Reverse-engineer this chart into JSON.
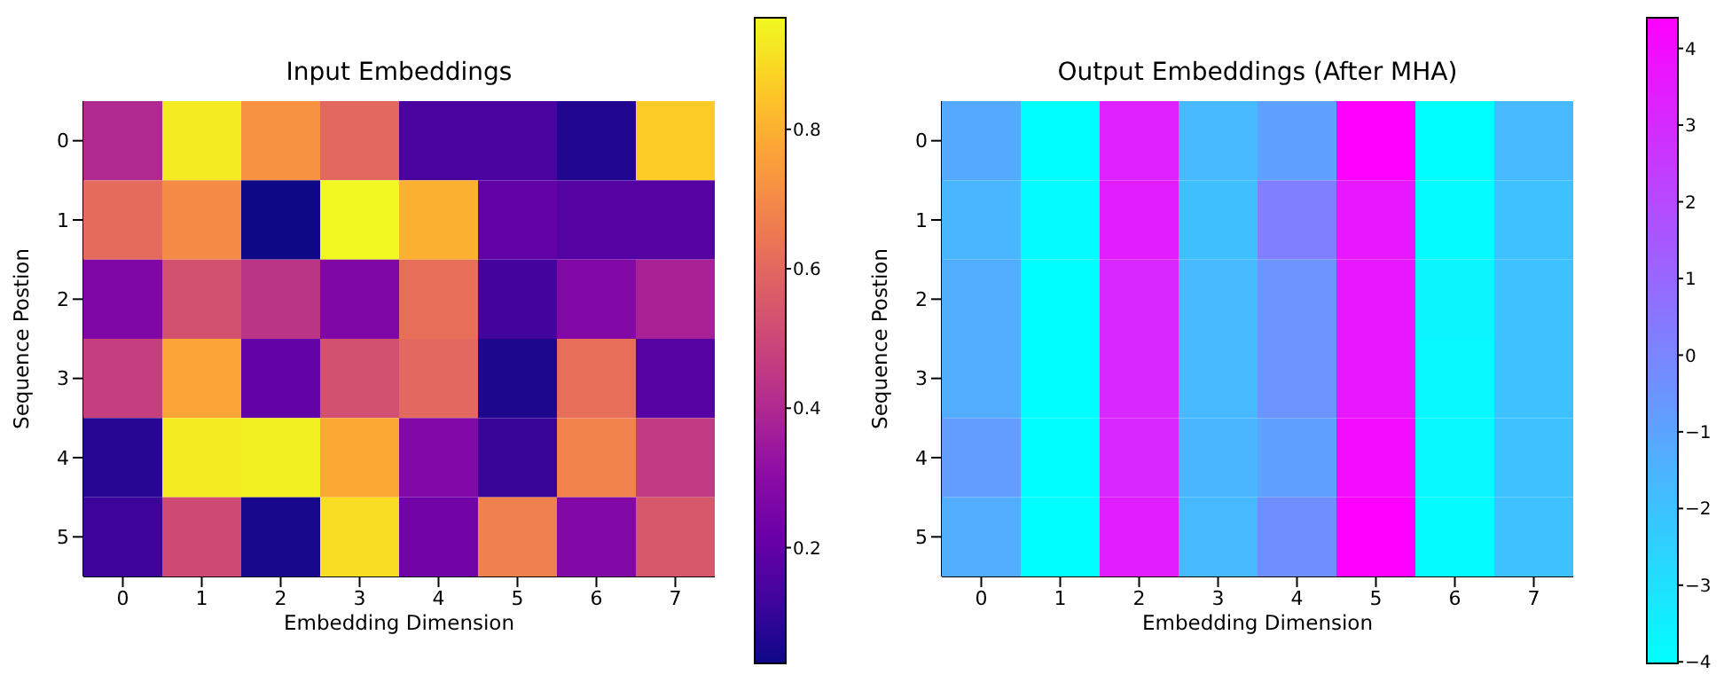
{
  "chart_data": [
    {
      "type": "heatmap",
      "title": "Input Embeddings",
      "xlabel": "Embedding Dimension",
      "ylabel": "Sequence Postion",
      "categories": [
        "0",
        "1",
        "2",
        "3",
        "4",
        "5",
        "6",
        "7"
      ],
      "y_categories": [
        "0",
        "1",
        "2",
        "3",
        "4",
        "5"
      ],
      "cells": [
        [
          0.4,
          0.93,
          0.72,
          0.6,
          0.15,
          0.15,
          0.07,
          0.86
        ],
        [
          0.61,
          0.7,
          0.035,
          0.96,
          0.8,
          0.2,
          0.17,
          0.17
        ],
        [
          0.27,
          0.53,
          0.44,
          0.27,
          0.62,
          0.13,
          0.28,
          0.38
        ],
        [
          0.47,
          0.77,
          0.2,
          0.53,
          0.6,
          0.06,
          0.62,
          0.17
        ],
        [
          0.08,
          0.93,
          0.94,
          0.78,
          0.28,
          0.11,
          0.68,
          0.46
        ],
        [
          0.12,
          0.51,
          0.05,
          0.9,
          0.24,
          0.67,
          0.28,
          0.55
        ]
      ],
      "clim": [
        0.034,
        0.96
      ],
      "cticks": [
        0.2,
        0.4,
        0.6,
        0.8
      ]
    },
    {
      "type": "heatmap",
      "title": "Output Embeddings (After MHA)",
      "xlabel": "Embedding Dimension",
      "ylabel": "Sequence Postion",
      "categories": [
        "0",
        "1",
        "2",
        "3",
        "4",
        "5",
        "6",
        "7"
      ],
      "y_categories": [
        "0",
        "1",
        "2",
        "3",
        "4",
        "5"
      ],
      "cells": [
        [
          -1.2,
          -4.0,
          3.3,
          -1.7,
          -0.9,
          4.4,
          -4.0,
          -1.7
        ],
        [
          -1.6,
          -3.9,
          3.4,
          -1.9,
          0.2,
          3.6,
          -3.9,
          -2.0
        ],
        [
          -1.3,
          -4.0,
          3.1,
          -1.7,
          -0.5,
          3.6,
          -3.7,
          -2.0
        ],
        [
          -1.3,
          -4.0,
          3.1,
          -1.7,
          -0.5,
          3.6,
          -3.8,
          -2.0
        ],
        [
          -0.8,
          -4.0,
          3.1,
          -1.6,
          -0.9,
          4.0,
          -3.8,
          -2.0
        ],
        [
          -1.3,
          -4.0,
          3.4,
          -1.7,
          -0.3,
          4.4,
          -3.9,
          -2.0
        ]
      ],
      "clim": [
        -4.02,
        4.4
      ],
      "cticks": [
        -4,
        -3,
        -2,
        -1,
        0,
        1,
        2,
        3,
        4
      ]
    }
  ]
}
